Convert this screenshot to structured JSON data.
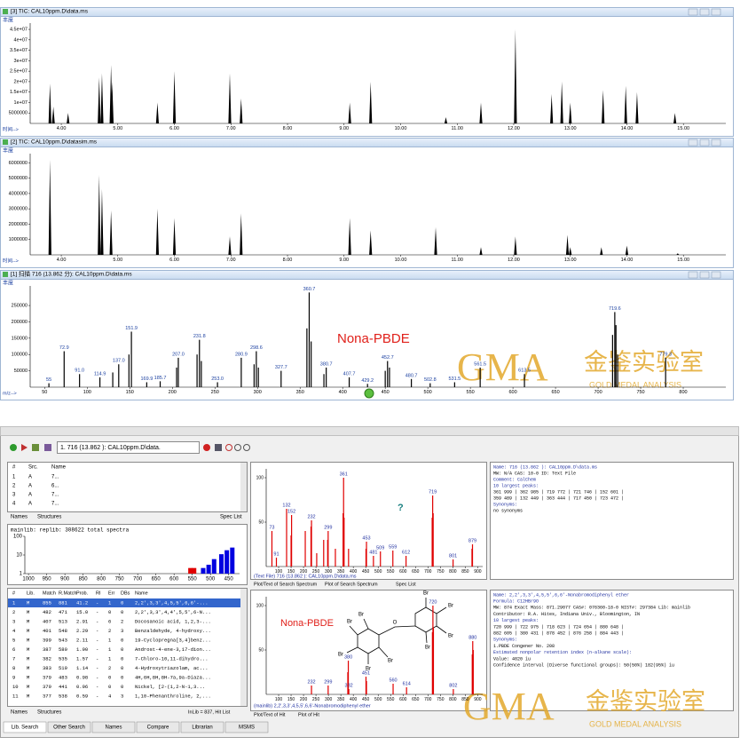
{
  "top_windows": [
    {
      "title": "[3] TIC: CAL10ppm.D\\data.ms",
      "y_label": "丰度",
      "x_label": "时间-->",
      "xlim": [
        3.45,
        15.75
      ],
      "ylim": [
        0,
        48000000
      ],
      "xticks": [
        {
          "value": 4,
          "label": "4.00"
        },
        {
          "value": 5,
          "label": "5.00"
        },
        {
          "value": 6,
          "label": "6.00"
        },
        {
          "value": 7,
          "label": "7.00"
        },
        {
          "value": 8,
          "label": "8.00"
        },
        {
          "value": 9,
          "label": "9.00"
        },
        {
          "value": 10,
          "label": "10.00"
        },
        {
          "value": 11,
          "label": "11.00"
        },
        {
          "value": 12,
          "label": "12.00"
        },
        {
          "value": 13,
          "label": "13.00"
        },
        {
          "value": 14,
          "label": "14.00"
        },
        {
          "value": 15,
          "label": "15.00"
        }
      ],
      "yticks": [
        5000000,
        {
          "value": 10000000,
          "label": "1e+07"
        },
        {
          "value": 15000000,
          "label": "1.5e+07"
        },
        {
          "value": 20000000,
          "label": "2e+07"
        },
        {
          "value": 25000000,
          "label": "2.5e+07"
        },
        {
          "value": 30000000,
          "label": "3e+07"
        },
        {
          "value": 35000000,
          "label": "3.5e+07"
        },
        {
          "value": 40000000,
          "label": "4e+07"
        },
        {
          "value": 45000000,
          "label": "4.5e+07"
        }
      ],
      "peaks_x": [
        3.8,
        3.86,
        4.12,
        4.67,
        4.72,
        4.88,
        4.9,
        5.7,
        6.0,
        6.98,
        7.18,
        9.1,
        9.47,
        10.8,
        11.42,
        12.03,
        12.67,
        12.85,
        13.0,
        13.58,
        13.98,
        14.18,
        14.85
      ],
      "peaks_y": [
        19000000,
        8000000,
        5000000,
        22000000,
        24000000,
        28000000,
        20000000,
        10000000,
        25000000,
        24000000,
        12000000,
        10000000,
        20000000,
        3000000,
        10000000,
        45000000,
        14000000,
        20000000,
        10000000,
        16000000,
        18000000,
        15000000,
        5000000
      ]
    },
    {
      "title": "[2] TIC: CAL10ppm.D\\datasim.ms",
      "y_label": "丰度",
      "x_label": "时间-->",
      "xlim": [
        3.45,
        15.75
      ],
      "ylim": [
        0,
        6600000
      ],
      "xticks": [
        {
          "value": 4,
          "label": "4.00"
        },
        {
          "value": 5,
          "label": "5.00"
        },
        {
          "value": 6,
          "label": "6.00"
        },
        {
          "value": 7,
          "label": "7.00"
        },
        {
          "value": 8,
          "label": "8.00"
        },
        {
          "value": 9,
          "label": "9.00"
        },
        {
          "value": 10,
          "label": "10.00"
        },
        {
          "value": 11,
          "label": "11.00"
        },
        {
          "value": 12,
          "label": "12.00"
        },
        {
          "value": 13,
          "label": "13.00"
        },
        {
          "value": 14,
          "label": "14.00"
        },
        {
          "value": 15,
          "label": "15.00"
        }
      ],
      "yticks": [
        1000000,
        2000000,
        3000000,
        4000000,
        5000000,
        6000000
      ],
      "peaks_x": [
        3.8,
        4.67,
        4.72,
        4.88,
        5.7,
        6.0,
        6.98,
        7.18,
        9.1,
        9.47,
        10.62,
        11.42,
        12.03,
        12.95,
        13.0,
        13.55,
        14.0,
        14.9
      ],
      "peaks_y": [
        6200000,
        5200000,
        4300000,
        2900000,
        3000000,
        2400000,
        1200000,
        2700000,
        2400000,
        1600000,
        1800000,
        500000,
        1200000,
        1300000,
        500000,
        500000,
        600000,
        100000
      ]
    },
    {
      "title": "[1] 扫描 716 (13.862 分): CAL10ppm.D\\data.ms",
      "y_label": "丰度",
      "x_label": "m/z-->",
      "xlim": [
        33,
        850
      ],
      "ylim": [
        0,
        310000
      ],
      "xticks": [
        50,
        100,
        150,
        200,
        250,
        300,
        350,
        400,
        450,
        500,
        550,
        600,
        650,
        700,
        750,
        800
      ],
      "yticks": [
        50000,
        100000,
        150000,
        200000,
        250000
      ],
      "peaks_x": [
        55,
        72.9,
        91,
        114.9,
        137,
        151.9,
        169.9,
        185.7,
        207,
        231.8,
        253,
        280.9,
        298.6,
        327.7,
        360.7,
        380.7,
        407.7,
        429.2,
        452.7,
        480.7,
        502.8,
        531.5,
        561.5,
        613.5,
        719.6,
        779.3,
        130,
        149,
        205,
        229,
        234,
        296,
        301,
        358,
        363,
        378,
        450,
        455,
        717,
        721,
        723
      ],
      "peaks_y": [
        12000,
        110000,
        40000,
        30000,
        70000,
        170000,
        15000,
        18000,
        90000,
        145000,
        15000,
        90000,
        110000,
        50000,
        290000,
        60000,
        30000,
        10000,
        80000,
        25000,
        12000,
        15000,
        60000,
        40000,
        230000,
        90000,
        45000,
        100000,
        60000,
        100000,
        80000,
        70000,
        60000,
        180000,
        140000,
        40000,
        50000,
        60000,
        160000,
        190000,
        100000
      ],
      "peak_labels": [
        "55",
        "72.9",
        "91.0",
        "114.9",
        "137.0",
        "151.9",
        "169.9",
        "185.7",
        "207.0",
        "231.8",
        "253.0",
        "280.9",
        "298.6",
        "327.7",
        "360.7",
        "380.7",
        "407.7",
        "429.2",
        "452.7",
        "480.7",
        "502.8",
        "531.5",
        "561.5",
        "613.5",
        "719.6",
        "779.3",
        null,
        null,
        null,
        null,
        null,
        null,
        null,
        null,
        null,
        null,
        null,
        null,
        null,
        null,
        null
      ]
    }
  ],
  "annotation": "Nona-PBDE",
  "watermark": {
    "main": "GMA",
    "cn": "金鉴实验室",
    "en": "GOLD MEDAL ANALYSIS"
  },
  "search": {
    "toolbar_text": "1. 716 (13.862 ): CAL10ppm.D\\data.",
    "source_list": {
      "headers": [
        "#",
        "Src.",
        "Name"
      ],
      "rows": [
        [
          "1",
          "A",
          "7..."
        ],
        [
          "2",
          "A",
          "6..."
        ],
        [
          "3",
          "A",
          "7..."
        ],
        [
          "4",
          "A",
          "7..."
        ]
      ]
    },
    "source_tabs": [
      "Names",
      "Structures"
    ],
    "spec_list": "Spec List",
    "hist": {
      "caption": "mainlib: replib:   308622 total spectra",
      "xlim": [
        1010,
        420
      ],
      "ylim": [
        1,
        100
      ],
      "xticks": [
        1000,
        950,
        900,
        850,
        800,
        750,
        700,
        650,
        600,
        550,
        500,
        450
      ],
      "yticks": [
        1,
        10,
        100
      ],
      "log": true,
      "peaks_x": [
        555,
        545,
        520,
        505,
        490,
        470,
        455,
        440
      ],
      "peaks_y": [
        2,
        2,
        2,
        3,
        6,
        11,
        18,
        25
      ],
      "colors": [
        "#e00000",
        "#e00000",
        "#0000e0",
        "#0000e0",
        "#0000e0",
        "#0000e0",
        "#0000e0",
        "#0000e0"
      ]
    },
    "hit_list": {
      "headers": [
        "#",
        "Lib.",
        "Match",
        "R.Match",
        "Prob.",
        "RI",
        "Err",
        "DBs",
        "Name"
      ],
      "rows": [
        [
          "1",
          "M",
          "855",
          "881",
          "41.2",
          "-",
          "1",
          "0",
          "2,2',3,3',4,5,5',6,6'-..."
        ],
        [
          "2",
          "M",
          "482",
          "471",
          "15.0",
          "-",
          "0",
          "0",
          "2,2',3,3',4,4',5,5',6-N..."
        ],
        [
          "3",
          "M",
          "407",
          "513",
          "2.91",
          "-",
          "6",
          "2",
          "Docosanoic acid, 1,2,3-..."
        ],
        [
          "4",
          "M",
          "401",
          "548",
          "2.29",
          "-",
          "2",
          "3",
          "Benzaldehyde, 4-hydroxy..."
        ],
        [
          "5",
          "M",
          "399",
          "543",
          "2.11",
          "-",
          "1",
          "0",
          "19-Cyclopregna[3,4]benz..."
        ],
        [
          "6",
          "M",
          "387",
          "580",
          "1.90",
          "-",
          "1",
          "0",
          "Androst-4-ene-3,17-dion..."
        ],
        [
          "7",
          "M",
          "382",
          "535",
          "1.57",
          "-",
          "1",
          "0",
          "7-Chloro-10,11-dihydro..."
        ],
        [
          "8",
          "M",
          "383",
          "519",
          "1.14",
          "-",
          "2",
          "0",
          "4-Hydroxytriazolam, ac..."
        ],
        [
          "9",
          "M",
          "379",
          "483",
          "0.98",
          "-",
          "0",
          "0",
          "4H,6H,8H,8H-7a,9a-Diaza..."
        ],
        [
          "10",
          "M",
          "379",
          "441",
          "0.96",
          "-",
          "0",
          "0",
          "Nickel, [2-(1,2-N-1,3..."
        ],
        [
          "11",
          "M",
          "377",
          "538",
          "0.59",
          "-",
          "4",
          "3",
          "1,10-Phenanthroline, 2,..."
        ]
      ]
    },
    "hit_tabs": [
      "Names",
      "Structures"
    ],
    "status": "InLib = 837, Hit List",
    "search_plot": {
      "caption": "(Text File) 716 (13.862 ): CAL10ppm.D\\data.ms",
      "flag": "?",
      "xlim": [
        50,
        920
      ],
      "ylim": [
        0,
        110
      ],
      "xticks": [
        100,
        150,
        200,
        250,
        300,
        350,
        400,
        450,
        500,
        550,
        600,
        650,
        700,
        750,
        800,
        850,
        900
      ],
      "yticks": [
        50,
        100
      ],
      "peaks_x": [
        73,
        91,
        132,
        152,
        207,
        232,
        253,
        281,
        299,
        328,
        361,
        381,
        453,
        481,
        509,
        559,
        612,
        719,
        801,
        879,
        150,
        230,
        297,
        359,
        363,
        451,
        717,
        721,
        877
      ],
      "peaks_y": [
        40,
        10,
        65,
        58,
        40,
        52,
        15,
        30,
        40,
        20,
        100,
        20,
        28,
        12,
        17,
        18,
        12,
        80,
        8,
        25,
        35,
        45,
        30,
        60,
        55,
        20,
        55,
        60,
        20
      ],
      "peak_labels": [
        "73",
        "91",
        "132",
        "152",
        null,
        "232",
        null,
        null,
        "299",
        null,
        "361",
        null,
        "453",
        "481",
        "509",
        "559",
        "612",
        "719",
        "801",
        "879",
        null,
        null,
        null,
        null,
        null,
        null,
        null,
        null,
        null
      ]
    },
    "search_tabs": [
      "Plot/Text of Search Spectrum",
      "Plot of Search Spectrum",
      "Spec List"
    ],
    "hit_plot": {
      "caption": "(mainlib) 2,2',3,3',4,5,5',6,6'-Nonabromodiphenyl ether",
      "xlim": [
        50,
        920
      ],
      "ylim": [
        0,
        110
      ],
      "xticks": [
        100,
        150,
        200,
        250,
        300,
        350,
        400,
        450,
        500,
        550,
        600,
        650,
        700,
        750,
        800,
        850,
        900
      ],
      "yticks": [
        50,
        100
      ],
      "peaks_x": [
        232,
        299,
        380,
        382,
        451,
        560,
        614,
        720,
        802,
        880,
        378,
        453,
        718,
        722,
        878,
        882
      ],
      "peaks_y": [
        10,
        10,
        38,
        6,
        20,
        12,
        8,
        100,
        6,
        60,
        25,
        15,
        70,
        75,
        45,
        50
      ],
      "peak_labels": [
        "232",
        "299",
        "380",
        "382",
        "451",
        "560",
        "614",
        "720",
        "802",
        "880",
        null,
        null,
        null,
        null,
        null,
        null
      ],
      "structure_labels": [
        "Br",
        "Br",
        "Br",
        "Br",
        "Br",
        "Br",
        "Br",
        "Br",
        "Br",
        "O"
      ]
    },
    "hit_plot_tabs": [
      "Plot/Text of Hit",
      "Plot of Hit"
    ],
    "search_info": [
      "Name: 716 (13.862 ): CAL10ppm.D\\data.ms",
      "MW: N/A  CAS: 10-0  ID: Text File",
      "Comment: CalChem",
      "10 largest peaks:",
      "361 999 |  362 985 |  719 772 |  721 746 |  152 601 |",
      "359 489 |  132 449 |  363 444 |  717 450 |  723 472 |",
      "Synonyms:",
      "no synonyms"
    ],
    "hit_info": [
      "Name: 2,2',3,3',4,5,5',6,6'-Nonabromodiphenyl ether",
      "Formula: C12HBr9O",
      "MW: 874  Exact Mass: 871.29077  CAS#: 076360-18-0  NIST#: 297384  Lib: mainlib",
      "Contributor: R.A. Hites, Indiana Univ., Bloomington, IN",
      "10 largest peaks:",
      "720 999 | 722 975 | 718 623 | 724 654 | 880 648 |",
      "882 605 | 380 431 | 878 452 | 876 258 | 884 443 |",
      "Synonyms:",
      "1.PBDE Congener No. 208",
      "Estimated nonpolar retention index (n-alkane scale):",
      "Value: 4020 iu",
      "Confidence interval (Diverse functional groups): 50(50%) 182(95%) iu"
    ],
    "bottom_tabs": [
      "Lib. Search",
      "Other Search",
      "Names",
      "Compare",
      "Librarian",
      "MSMS"
    ]
  }
}
